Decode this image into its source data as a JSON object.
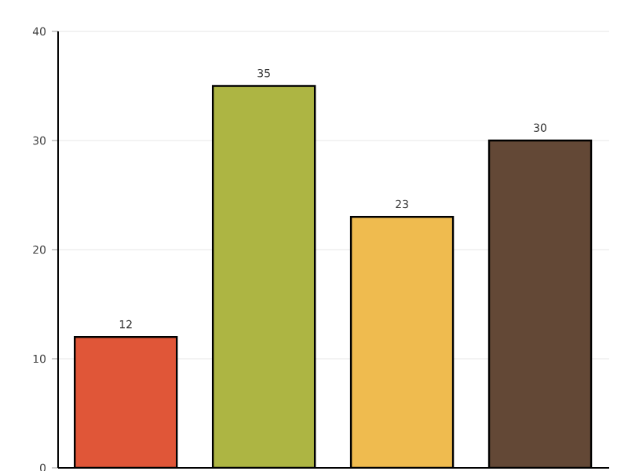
{
  "chart_data": {
    "type": "bar",
    "categories": [
      null,
      null,
      null,
      null
    ],
    "values": [
      12,
      35,
      23,
      30
    ],
    "colors": [
      "#e05638",
      "#adb543",
      "#efbb4f",
      "#634836"
    ],
    "ylim": [
      0,
      40
    ],
    "yticks": [
      0,
      10,
      20,
      30,
      40
    ],
    "grid": "y",
    "data_labels": true
  }
}
